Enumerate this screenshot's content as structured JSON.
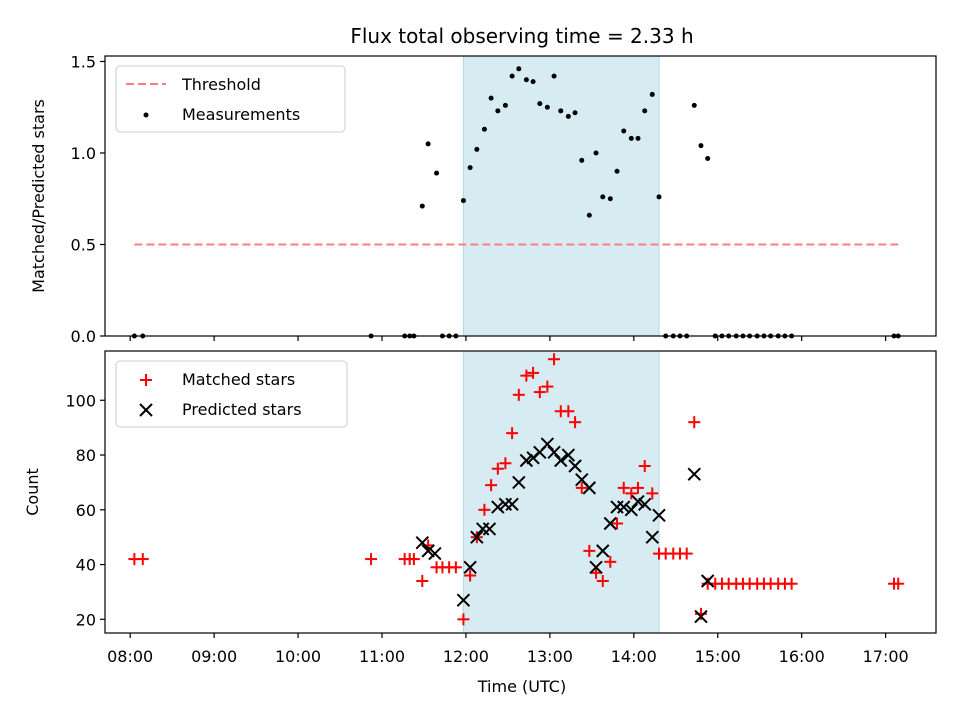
{
  "chart_data": [
    {
      "type": "scatter",
      "title": "Flux total observing time = 2.33 h",
      "xlabel": "",
      "ylabel": "Matched/Predicted stars",
      "xlim": [
        7.7,
        17.6
      ],
      "ylim": [
        0,
        1.53
      ],
      "xticks": [
        8,
        9,
        10,
        11,
        12,
        13,
        14,
        15,
        16,
        17
      ],
      "yticks": [
        0,
        0.5,
        1.0,
        1.5
      ],
      "ytick_labels": [
        "0.0",
        "0.5",
        "1.0",
        "1.5"
      ],
      "shaded_span": [
        11.97,
        14.3
      ],
      "shade_color": "#add8e6",
      "legend": "upper left",
      "threshold": {
        "name": "Threshold",
        "value": 0.5,
        "x_range": [
          8.05,
          17.15
        ],
        "color": "#ff7f7f"
      },
      "series": [
        {
          "name": "Measurements",
          "color": "#000000",
          "x": [
            8.05,
            8.15,
            10.87,
            11.27,
            11.33,
            11.38,
            11.48,
            11.55,
            11.65,
            11.72,
            11.8,
            11.88,
            11.97,
            12.05,
            12.13,
            12.22,
            12.3,
            12.38,
            12.47,
            12.55,
            12.63,
            12.72,
            12.8,
            12.88,
            12.97,
            13.05,
            13.13,
            13.22,
            13.3,
            13.38,
            13.47,
            13.55,
            13.63,
            13.72,
            13.8,
            13.88,
            13.97,
            14.05,
            14.13,
            14.22,
            14.3,
            14.38,
            14.47,
            14.55,
            14.63,
            14.72,
            14.8,
            14.88,
            14.97,
            15.05,
            15.13,
            15.22,
            15.3,
            15.38,
            15.47,
            15.55,
            15.63,
            15.72,
            15.8,
            15.88,
            17.1,
            17.15
          ],
          "y": [
            0,
            0,
            0,
            0,
            0,
            0,
            0.71,
            1.05,
            0.89,
            0,
            0,
            0,
            0.74,
            0.92,
            1.02,
            1.13,
            1.3,
            1.23,
            1.26,
            1.42,
            1.46,
            1.4,
            1.39,
            1.27,
            1.25,
            1.42,
            1.23,
            1.2,
            1.22,
            0.96,
            0.66,
            1.0,
            0.76,
            0.75,
            0.9,
            1.12,
            1.08,
            1.08,
            1.23,
            1.32,
            0.76,
            0,
            0,
            0,
            0,
            1.26,
            1.04,
            0.97,
            0,
            0,
            0,
            0,
            0,
            0,
            0,
            0,
            0,
            0,
            0,
            0,
            0,
            0
          ]
        }
      ]
    },
    {
      "type": "scatter",
      "title": "",
      "xlabel": "Time (UTC)",
      "ylabel": "Count",
      "xlim": [
        7.7,
        17.6
      ],
      "ylim": [
        15,
        118
      ],
      "xticks": [
        8,
        9,
        10,
        11,
        12,
        13,
        14,
        15,
        16,
        17
      ],
      "xtick_labels": [
        "08:00",
        "09:00",
        "10:00",
        "11:00",
        "12:00",
        "13:00",
        "14:00",
        "15:00",
        "16:00",
        "17:00"
      ],
      "yticks": [
        20,
        40,
        60,
        80,
        100
      ],
      "ytick_labels": [
        "20",
        "40",
        "60",
        "80",
        "100"
      ],
      "shaded_span": [
        11.97,
        14.3
      ],
      "shade_color": "#add8e6",
      "legend": "upper left",
      "series": [
        {
          "name": "Matched stars",
          "marker": "plus",
          "color": "#ff0000",
          "x": [
            8.05,
            8.15,
            10.87,
            11.27,
            11.33,
            11.38,
            11.48,
            11.55,
            11.65,
            11.72,
            11.8,
            11.88,
            11.97,
            12.05,
            12.13,
            12.22,
            12.3,
            12.38,
            12.47,
            12.55,
            12.63,
            12.72,
            12.8,
            12.88,
            12.97,
            13.05,
            13.13,
            13.22,
            13.3,
            13.38,
            13.47,
            13.55,
            13.63,
            13.72,
            13.8,
            13.88,
            13.97,
            14.05,
            14.13,
            14.22,
            14.3,
            14.38,
            14.47,
            14.55,
            14.63,
            14.72,
            14.8,
            14.88,
            14.97,
            15.05,
            15.13,
            15.22,
            15.3,
            15.38,
            15.47,
            15.55,
            15.63,
            15.72,
            15.8,
            15.88,
            17.1,
            17.15
          ],
          "y": [
            42,
            42,
            42,
            42,
            42,
            42,
            34,
            47,
            39,
            39,
            39,
            39,
            20,
            36,
            50,
            60,
            69,
            75,
            77,
            88,
            102,
            109,
            110,
            103,
            105,
            115,
            96,
            96,
            92,
            68,
            45,
            37,
            34,
            41,
            55,
            68,
            66,
            68,
            76,
            66,
            44,
            44,
            44,
            44,
            44,
            92,
            22,
            33,
            33,
            33,
            33,
            33,
            33,
            33,
            33,
            33,
            33,
            33,
            33,
            33,
            33,
            33
          ]
        },
        {
          "name": "Predicted stars",
          "marker": "x",
          "color": "#000000",
          "x": [
            11.48,
            11.55,
            11.63,
            11.97,
            12.05,
            12.13,
            12.2,
            12.28,
            12.38,
            12.47,
            12.55,
            12.63,
            12.72,
            12.8,
            12.88,
            12.97,
            13.05,
            13.13,
            13.22,
            13.3,
            13.38,
            13.47,
            13.55,
            13.63,
            13.72,
            13.8,
            13.88,
            13.97,
            14.05,
            14.13,
            14.22,
            14.3,
            14.72,
            14.8,
            14.88
          ],
          "y": [
            48,
            45,
            44,
            27,
            39,
            50,
            53,
            53,
            61,
            62,
            62,
            70,
            78,
            79,
            81,
            84,
            81,
            78,
            80,
            76,
            71,
            68,
            39,
            45,
            55,
            61,
            61,
            60,
            63,
            62,
            50,
            58,
            73,
            21,
            34
          ]
        }
      ]
    }
  ]
}
